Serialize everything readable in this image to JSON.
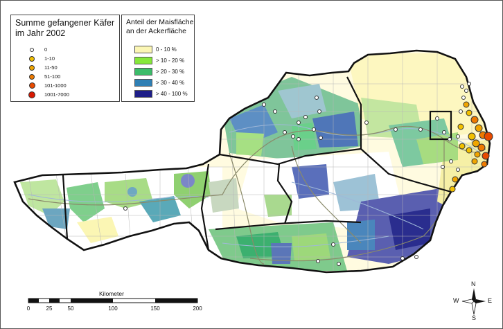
{
  "legend_beetles": {
    "title_line1": "Summe gefangener Käfer",
    "title_line2": "im Jahr 2002",
    "classes": [
      {
        "label": "0",
        "color": "#ffffff"
      },
      {
        "label": "1-10",
        "color": "#f2c000"
      },
      {
        "label": "11-50",
        "color": "#f0a500"
      },
      {
        "label": "51-100",
        "color": "#ee7a00"
      },
      {
        "label": "101-1000",
        "color": "#e84a00"
      },
      {
        "label": "1001-7000",
        "color": "#d81800"
      }
    ]
  },
  "legend_maize": {
    "title_line1": "Anteil der Maisfläche",
    "title_line2": "an der Ackerfläche",
    "classes": [
      {
        "label": "0 - 10 %",
        "color": "#fbf6b4"
      },
      {
        "label": "> 10 - 20 %",
        "color": "#86e83a"
      },
      {
        "label": "> 20 - 30 %",
        "color": "#3cbc6a"
      },
      {
        "label": "> 30 - 40 %",
        "color": "#2f7fb4"
      },
      {
        "label": "> 40 - 100 %",
        "color": "#1e1e88"
      }
    ]
  },
  "scale_bar": {
    "title": "Kilometer",
    "ticks": [
      "0",
      "25",
      "50",
      "100",
      "150",
      "200"
    ]
  },
  "compass": {
    "n": "N",
    "s": "S",
    "e": "E",
    "w": "W"
  },
  "colors": {
    "border": "#111111",
    "roads": "#8a8a6a",
    "rivers": "#9fb8d8",
    "trap_point": "#ffffff"
  }
}
